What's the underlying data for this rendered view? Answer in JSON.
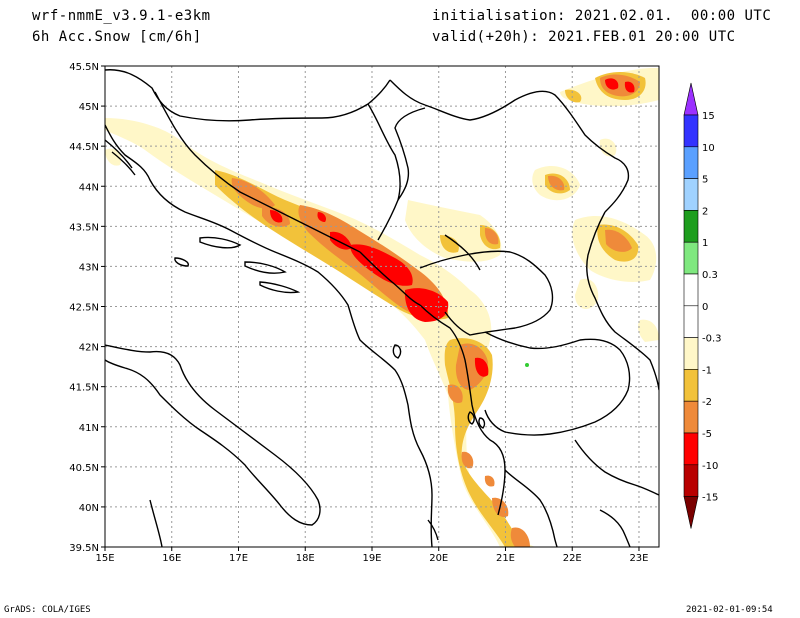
{
  "header": {
    "model": "wrf-nmmE_v3.9.1-e3km",
    "variable": "6h Acc.Snow [cm/6h]",
    "init": "initialisation: 2021.02.01.  00:00 UTC",
    "valid": "valid(+20h): 2021.FEB.01 20:00 UTC"
  },
  "footer": {
    "left": "GrADS: COLA/IGES",
    "right": "2021-02-01-09:54"
  },
  "axes": {
    "lon_labels": [
      "15E",
      "16E",
      "17E",
      "18E",
      "19E",
      "20E",
      "21E",
      "22E",
      "23E"
    ],
    "lat_labels": [
      "45.5N",
      "45N",
      "44.5N",
      "44N",
      "43.5N",
      "43N",
      "42.5N",
      "42N",
      "41.5N",
      "41N",
      "40.5N",
      "40N",
      "39.5N"
    ],
    "lon_range": [
      15,
      23.3
    ],
    "lat_range": [
      39.5,
      45.5
    ]
  },
  "colorbar": {
    "labels": [
      "15",
      "10",
      "5",
      "2",
      "1",
      "0.3",
      "0",
      "-0.3",
      "-1",
      "-2",
      "-5",
      "-10",
      "-15"
    ],
    "colors": {
      "top_arrow": "#9b30ff",
      "b10_15": "#3333ff",
      "b5_10": "#5aa0ff",
      "b2_5": "#a0d2ff",
      "b1_2": "#1e9e1e",
      "b03_1": "#7fe87f",
      "zero_band": "#ffffff",
      "n03_1": "#fff7c8",
      "n1_2": "#f2c23a",
      "n2_5": "#ef8a3a",
      "n5_10": "#ff0000",
      "n10_15": "#b80000",
      "bottom_arrow": "#7a0000"
    }
  },
  "snow_fields": {
    "light": "#fff7c8",
    "moderate": "#f2c23a",
    "heavy": "#ef8a3a",
    "extreme": "#ff0000",
    "green_spot": "#33cc33"
  }
}
